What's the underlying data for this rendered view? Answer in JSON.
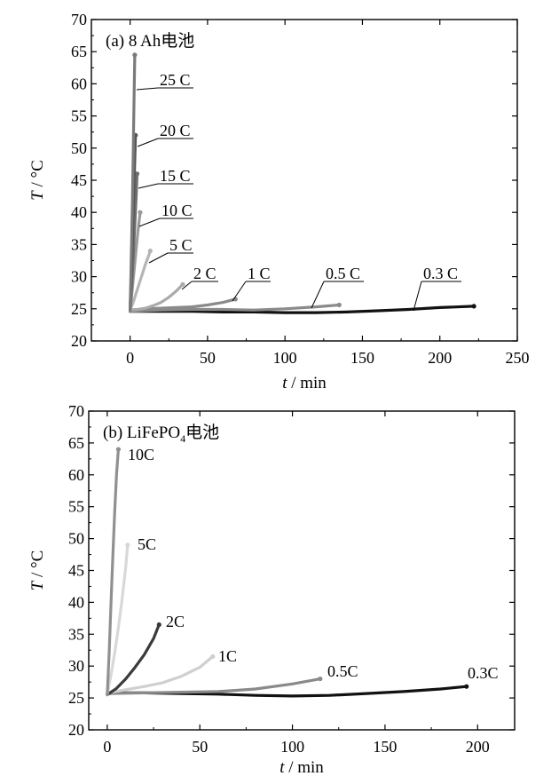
{
  "chart_data": [
    {
      "type": "line",
      "panel_label": "(a)",
      "title": "8 Ah电池",
      "xlabel_var": "t",
      "xlabel_unit": "/ min",
      "ylabel_var": "T",
      "ylabel_unit": "/ °C",
      "xlim": [
        -25,
        250
      ],
      "ylim": [
        20,
        70
      ],
      "xticks": [
        0,
        50,
        100,
        150,
        200,
        250
      ],
      "yticks": [
        20,
        25,
        30,
        35,
        40,
        45,
        50,
        55,
        60,
        65,
        70
      ],
      "grid": false,
      "series": [
        {
          "name": "0.3 C",
          "color": "#111111",
          "x": [
            0,
            20,
            40,
            60,
            80,
            100,
            120,
            140,
            160,
            180,
            200,
            222
          ],
          "y": [
            24.6,
            24.6,
            24.6,
            24.5,
            24.5,
            24.4,
            24.4,
            24.5,
            24.7,
            24.9,
            25.2,
            25.4
          ]
        },
        {
          "name": "0.5 C",
          "color": "#8a8a8a",
          "x": [
            0,
            20,
            40,
            60,
            80,
            100,
            120,
            135
          ],
          "y": [
            24.6,
            24.8,
            24.9,
            24.9,
            24.8,
            25.0,
            25.3,
            25.6
          ]
        },
        {
          "name": "1 C",
          "color": "#8a8a8a",
          "x": [
            0,
            10,
            20,
            30,
            40,
            50,
            60,
            68
          ],
          "y": [
            24.8,
            25.0,
            25.1,
            25.2,
            25.3,
            25.6,
            26.0,
            26.5
          ]
        },
        {
          "name": "2 C",
          "color": "#aaaaaa",
          "x": [
            0,
            5,
            10,
            15,
            20,
            25,
            30,
            34
          ],
          "y": [
            24.8,
            24.9,
            25.1,
            25.5,
            26.0,
            26.8,
            27.8,
            28.8
          ]
        },
        {
          "name": "5 C",
          "color": "#b5b5b5",
          "x": [
            0,
            2,
            4,
            6,
            8,
            10,
            12,
            13
          ],
          "y": [
            24.8,
            26.0,
            27.5,
            29.0,
            30.5,
            32.0,
            33.3,
            34.0
          ]
        },
        {
          "name": "10 C",
          "color": "#9a9a9a",
          "x": [
            0,
            1,
            2,
            3,
            4,
            5,
            6,
            6.5
          ],
          "y": [
            24.8,
            27.0,
            29.5,
            32.0,
            34.5,
            37.0,
            39.0,
            40.0
          ]
        },
        {
          "name": "15 C",
          "color": "#6e6e6e",
          "x": [
            0,
            1,
            2,
            3,
            4,
            4.5
          ],
          "y": [
            24.8,
            28.5,
            33.0,
            38.0,
            43.0,
            46.0
          ]
        },
        {
          "name": "20 C",
          "color": "#555555",
          "x": [
            0,
            1,
            2,
            3,
            3.5
          ],
          "y": [
            24.8,
            32.0,
            40.0,
            48.0,
            52.0
          ]
        },
        {
          "name": "25 C",
          "color": "#7a7a7a",
          "x": [
            0,
            0.5,
            1,
            1.5,
            2,
            2.5,
            3
          ],
          "y": [
            24.8,
            30.0,
            36.0,
            42.0,
            49.0,
            57.0,
            64.5
          ]
        }
      ]
    },
    {
      "type": "line",
      "panel_label": "(b)",
      "title_main": "LiFePO",
      "title_sub": "4",
      "title_suffix": "电池",
      "xlabel_var": "t",
      "xlabel_unit": "/ min",
      "ylabel_var": "T",
      "ylabel_unit": "/ °C",
      "xlim": [
        -10,
        220
      ],
      "ylim": [
        20,
        70
      ],
      "xticks": [
        0,
        50,
        100,
        150,
        200
      ],
      "yticks": [
        20,
        25,
        30,
        35,
        40,
        45,
        50,
        55,
        60,
        65,
        70
      ],
      "grid": false,
      "series": [
        {
          "name": "0.3C",
          "color": "#111111",
          "x": [
            0,
            20,
            40,
            60,
            80,
            100,
            120,
            140,
            160,
            180,
            194
          ],
          "y": [
            25.8,
            25.8,
            25.7,
            25.6,
            25.4,
            25.3,
            25.4,
            25.7,
            26.0,
            26.4,
            26.8
          ]
        },
        {
          "name": "0.5C",
          "color": "#8a8a8a",
          "x": [
            0,
            20,
            40,
            60,
            80,
            100,
            115
          ],
          "y": [
            25.7,
            25.8,
            25.9,
            26.0,
            26.4,
            27.2,
            28.0
          ]
        },
        {
          "name": "1C",
          "color": "#cfcfcf",
          "x": [
            0,
            10,
            20,
            30,
            40,
            50,
            57
          ],
          "y": [
            25.8,
            26.3,
            26.8,
            27.4,
            28.4,
            29.8,
            31.5
          ]
        },
        {
          "name": "2C",
          "color": "#3a3a3a",
          "x": [
            0,
            5,
            10,
            15,
            20,
            25,
            28
          ],
          "y": [
            25.5,
            26.5,
            28.0,
            29.8,
            31.8,
            34.3,
            36.5
          ]
        },
        {
          "name": "5C",
          "color": "#d8d8d8",
          "x": [
            0,
            2,
            4,
            6,
            8,
            10,
            11
          ],
          "y": [
            25.5,
            28.5,
            32.0,
            36.0,
            40.5,
            45.5,
            49.0
          ]
        },
        {
          "name": "10C",
          "color": "#909090",
          "x": [
            0,
            1,
            2,
            3,
            4,
            5,
            6
          ],
          "y": [
            25.5,
            32.0,
            39.5,
            47.0,
            54.0,
            60.0,
            64.0
          ]
        }
      ]
    }
  ]
}
